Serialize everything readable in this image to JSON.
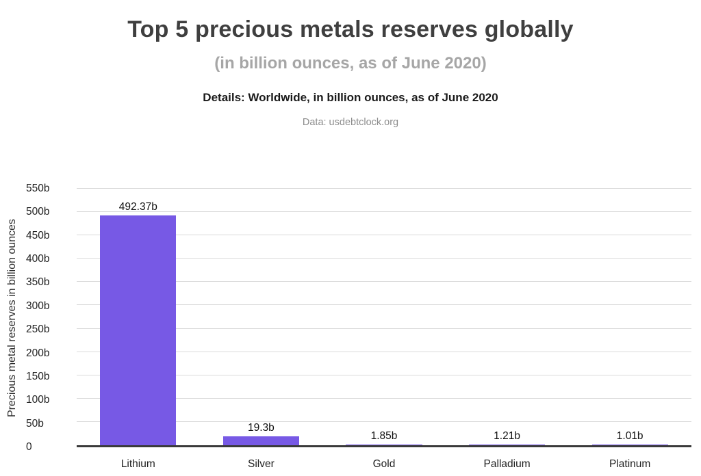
{
  "header": {
    "title": "Top 5 precious metals reserves globally",
    "subtitle": "(in billion ounces, as of June 2020)",
    "details": "Details: Worldwide, in billion ounces, as of June 2020",
    "source": "Data: usdebtclock.org"
  },
  "colors": {
    "bar": "#7759e5",
    "grid": "#d9d9d9",
    "axis": "#3a3a3a"
  },
  "chart_data": {
    "type": "bar",
    "title": "Top 5 precious metals reserves globally",
    "subtitle": "(in billion ounces, as of June 2020)",
    "categories": [
      "Lithium",
      "Silver",
      "Gold",
      "Palladium",
      "Platinum"
    ],
    "values": [
      492.37,
      19.3,
      1.85,
      1.21,
      1.01
    ],
    "value_labels": [
      "492.37b",
      "19.3b",
      "1.85b",
      "1.21b",
      "1.01b"
    ],
    "xlabel": "",
    "ylabel": "Precious metal reserves in billion ounces",
    "ylim": [
      0,
      550
    ],
    "yticks": [
      0,
      50,
      100,
      150,
      200,
      250,
      300,
      350,
      400,
      450,
      500,
      550
    ],
    "ytick_labels": [
      "0",
      "50b",
      "100b",
      "150b",
      "200b",
      "250b",
      "300b",
      "350b",
      "400b",
      "450b",
      "500b",
      "550b"
    ],
    "grid": "horizontal",
    "legend": "none",
    "bar_color": "#7759e5"
  }
}
